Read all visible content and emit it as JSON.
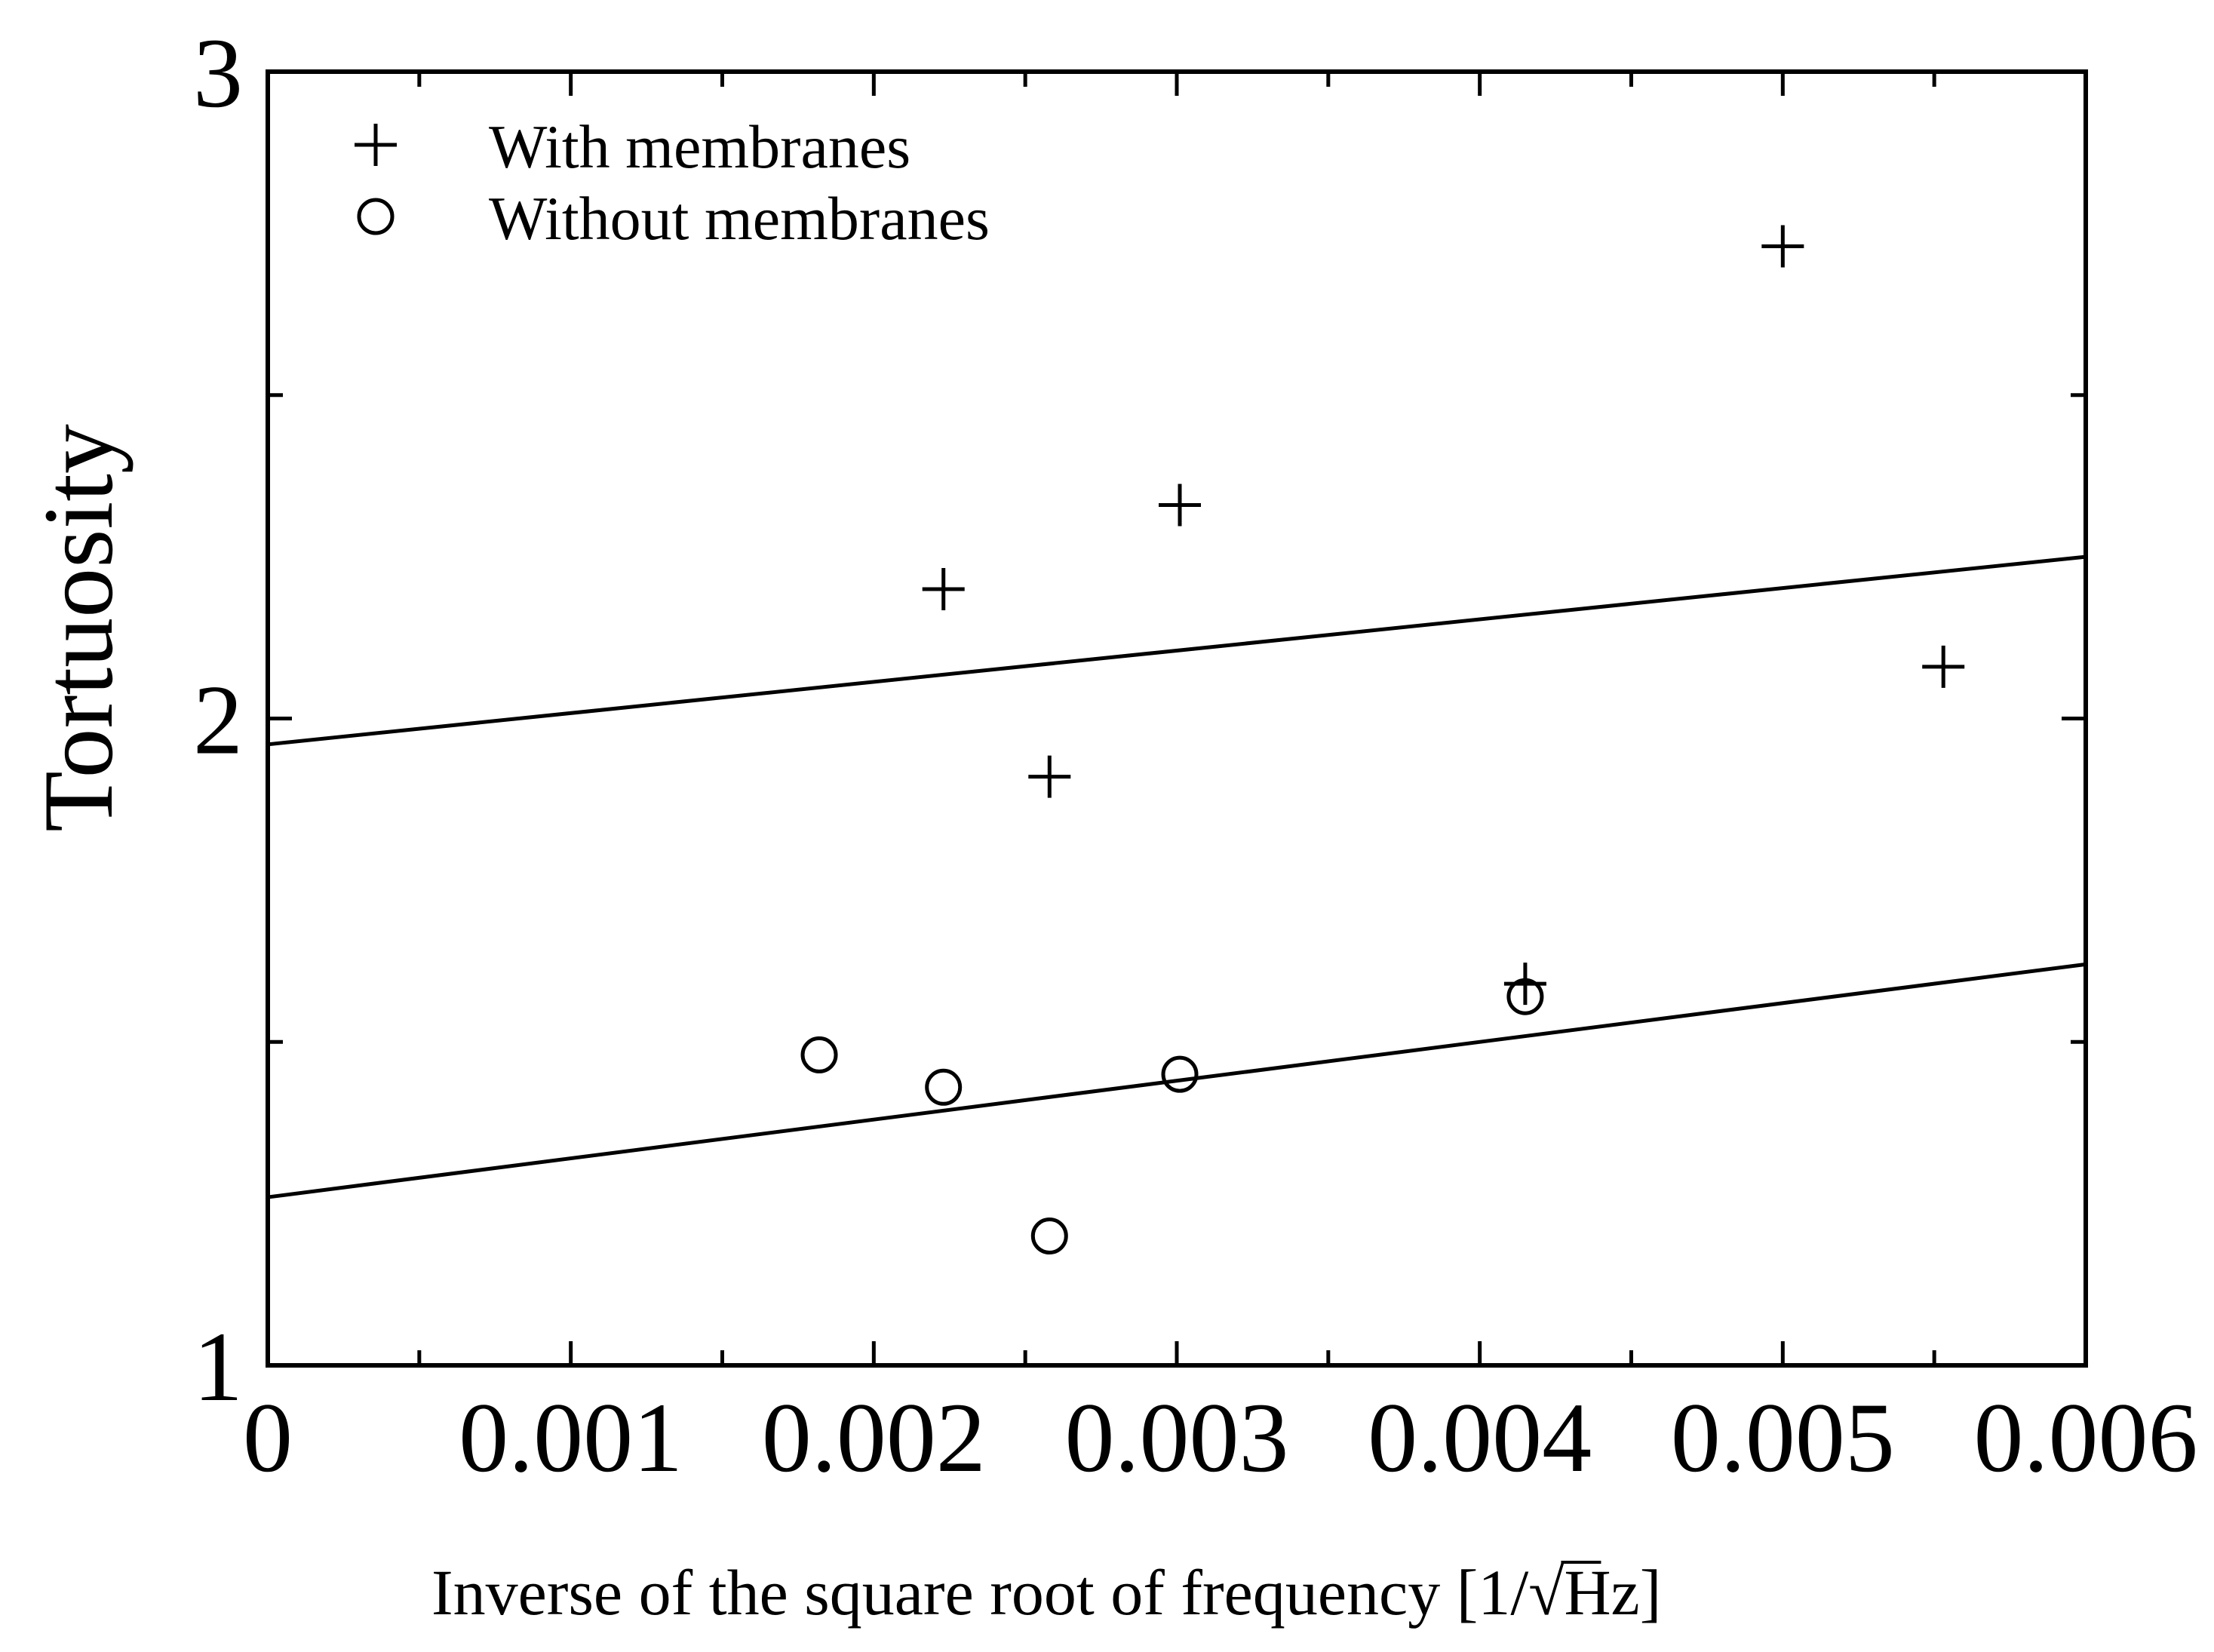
{
  "chart_data": {
    "type": "scatter",
    "title": "",
    "xlabel": "Inverse of the square root of frequency [1/√Hz]",
    "xlabel_parts": {
      "prefix": "Inverse of the square root of frequency [1/",
      "radical": "√",
      "radicand": "Hz]"
    },
    "ylabel": "Tortuosity",
    "xlim": [
      0,
      0.006
    ],
    "ylim": [
      1,
      3
    ],
    "x_ticks": [
      0,
      0.001,
      0.002,
      0.003,
      0.004,
      0.005,
      0.006
    ],
    "x_tick_labels": [
      "0",
      "0.001",
      "0.002",
      "0.003",
      "0.004",
      "0.005",
      "0.006"
    ],
    "x_minor_ticks": [
      0.0005,
      0.0015,
      0.0025,
      0.0035,
      0.0045,
      0.0055
    ],
    "y_ticks": [
      1,
      2,
      3
    ],
    "y_tick_labels": [
      "1",
      "2",
      "3"
    ],
    "y_minor_ticks": [
      1.5,
      2.5
    ],
    "grid": false,
    "legend_position": "top-left",
    "series": [
      {
        "name": "With membranes",
        "marker": "plus",
        "points": [
          {
            "x": 0.00223,
            "y": 2.2
          },
          {
            "x": 0.00258,
            "y": 1.91
          },
          {
            "x": 0.00301,
            "y": 2.33
          },
          {
            "x": 0.00415,
            "y": 1.59
          },
          {
            "x": 0.005,
            "y": 2.73
          },
          {
            "x": 0.00553,
            "y": 2.08
          }
        ],
        "fit_line": {
          "x": [
            0,
            0.006
          ],
          "y": [
            1.96,
            2.25
          ]
        }
      },
      {
        "name": "Without membranes",
        "marker": "circle",
        "points": [
          {
            "x": 0.00182,
            "y": 1.48
          },
          {
            "x": 0.00223,
            "y": 1.43
          },
          {
            "x": 0.00258,
            "y": 1.2
          },
          {
            "x": 0.00301,
            "y": 1.45
          },
          {
            "x": 0.00415,
            "y": 1.57
          }
        ],
        "fit_line": {
          "x": [
            0,
            0.006
          ],
          "y": [
            1.26,
            1.62
          ]
        }
      }
    ],
    "colors": {
      "ink": "#000000",
      "background": "#ffffff"
    }
  }
}
